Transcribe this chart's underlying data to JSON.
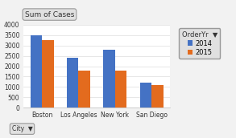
{
  "title": "Sum of Cases",
  "categories": [
    "Boston",
    "Los Angeles",
    "New York",
    "San Diego"
  ],
  "series": [
    {
      "label": "2014",
      "values": [
        3500,
        2400,
        2800,
        1200
      ],
      "color": "#4472C4"
    },
    {
      "label": "2015",
      "values": [
        3250,
        1800,
        1800,
        1100
      ],
      "color": "#E36B1E"
    }
  ],
  "ylim": [
    0,
    4000
  ],
  "yticks": [
    0,
    500,
    1000,
    1500,
    2000,
    2500,
    3000,
    3500,
    4000
  ],
  "legend_title": "OrderYr",
  "xlabel_button": "City",
  "chart_bg": "#FFFFFF",
  "grid_color": "#DDDDDD",
  "bar_width": 0.32,
  "title_fontsize": 6.5,
  "tick_fontsize": 5.5,
  "legend_fontsize": 6,
  "outer_bg": "#F2F2F2",
  "button_bg": "#E0E0E0",
  "button_edge": "#999999"
}
